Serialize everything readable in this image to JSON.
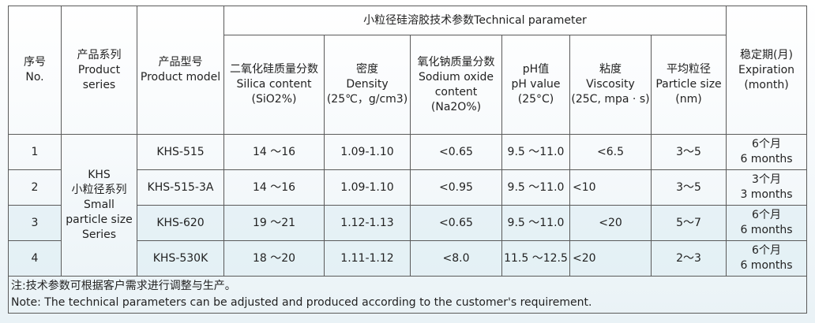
{
  "table": {
    "group_header": "小粒径硅溶胶技术参数Technical parameter",
    "headers": {
      "no": [
        "序号",
        "No."
      ],
      "series": [
        "产品系列",
        "Product",
        "series"
      ],
      "model": [
        "产品型号",
        "Product model"
      ],
      "silica": [
        "二氧化硅质量分数",
        "Silica content",
        "(SiO2%)"
      ],
      "density": [
        "密度",
        "Density",
        "(25℃，g/cm3)"
      ],
      "sodium": [
        "氧化钠质量分数",
        "Sodium oxide",
        "content",
        "(Na2O%)"
      ],
      "ph": [
        "pH值",
        "pH value",
        "(25°C)"
      ],
      "viscosity": [
        "粘度",
        "Viscosity",
        "(25C, mpa · s)"
      ],
      "particle": [
        "平均粒径",
        "Particle size",
        "(nm)"
      ],
      "expiration": [
        "稳定期(月)",
        "Expiration",
        "(month)"
      ]
    },
    "series_label": [
      "KHS",
      "小粒径系列",
      "Small",
      "particle size",
      "Series"
    ],
    "rows": [
      {
        "no": "1",
        "model": "KHS-515",
        "silica": "14 ～16",
        "density": "1.09-1.10",
        "sodium": "<0.65",
        "ph": "9.5 ～11.0",
        "viscosity": "<6.5",
        "particle": "3～5",
        "expiration": [
          "6个月",
          "6 months"
        ]
      },
      {
        "no": "2",
        "model": "KHS-515-3A",
        "silica": "14 ～16",
        "density": "1.09-1.10",
        "sodium": "<0.95",
        "ph": "9.5 ～11.0",
        "viscosity": "<10",
        "particle": "3～5",
        "expiration": [
          "3个月",
          "3 months"
        ]
      },
      {
        "no": "3",
        "model": "KHS-620",
        "silica": "19 ～21",
        "density": "1.12-1.13",
        "sodium": "<0.65",
        "ph": "9.5 ～11.0",
        "viscosity": "<20",
        "particle": "5～7",
        "expiration": [
          "6个月",
          "6 months"
        ]
      },
      {
        "no": "4",
        "model": "KHS-530K",
        "silica": "18 ～20",
        "density": "1.11-1.12",
        "sodium": "<8.0",
        "ph": "11.5 ～12.5",
        "viscosity": "<20",
        "particle": "2～3",
        "expiration": [
          "6个月",
          "6 months"
        ]
      }
    ],
    "note": [
      "注:技术参数可根据客户需求进行调整与生产。",
      "Note: The technical parameters can be adjusted and produced according to the customer's requirement."
    ]
  }
}
